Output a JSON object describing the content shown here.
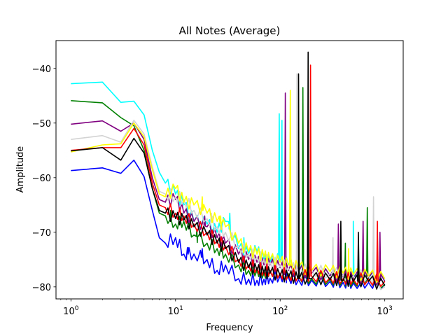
{
  "chart_data": {
    "type": "line",
    "title": "All Notes (Average)",
    "xlabel": "Frequency",
    "ylabel": "Amplitude",
    "xscale": "log",
    "xlim": [
      0.72,
      1500
    ],
    "ylim": [
      -82.2,
      -34.9
    ],
    "grid": false,
    "legend": "none",
    "x_ticks": [
      {
        "value": 1,
        "base": "10",
        "exp": "0"
      },
      {
        "value": 10,
        "base": "10",
        "exp": "1"
      },
      {
        "value": 100,
        "base": "10",
        "exp": "2"
      },
      {
        "value": 1000,
        "base": "10",
        "exp": "3"
      }
    ],
    "y_ticks": [
      {
        "value": -40,
        "label": "−40"
      },
      {
        "value": -50,
        "label": "−50"
      },
      {
        "value": -60,
        "label": "−60"
      },
      {
        "value": -70,
        "label": "−70"
      },
      {
        "value": -80,
        "label": "−80"
      }
    ],
    "series": [
      {
        "color": "#0000ff",
        "x": [
          1,
          2,
          3,
          4,
          5,
          6,
          7,
          8,
          10,
          12,
          15,
          20,
          25,
          30,
          40,
          50,
          60,
          70,
          80,
          100,
          120,
          150,
          200,
          300,
          400,
          500,
          700,
          1000
        ],
        "y": [
          -58.7,
          -58.2,
          -59.2,
          -56.8,
          -59.8,
          -66.0,
          -71.0,
          -72.0,
          -71.0,
          -74.0,
          -74.0,
          -75.0,
          -77.0,
          -76.0,
          -78.5,
          -78.6,
          -78.8,
          -78.6,
          -78.4,
          -78.0,
          -78.3,
          -78.7,
          -78.8,
          -79.0,
          -79.2,
          -79.3,
          -79.2,
          -79.5
        ],
        "peaks": [
          [
            13,
            -72.8
          ],
          [
            18,
            -73.0
          ],
          [
            115,
            -77.0
          ],
          [
            600,
            -78.0
          ]
        ]
      },
      {
        "color": "#00ffff",
        "x": [
          1,
          2,
          3,
          4,
          5,
          6,
          7,
          8,
          10,
          12,
          15,
          20,
          25,
          30,
          40,
          50,
          60,
          70,
          80,
          100,
          120,
          150,
          200,
          300,
          400,
          500,
          700,
          1000
        ],
        "y": [
          -42.8,
          -42.5,
          -46.2,
          -46.0,
          -48.5,
          -55.0,
          -59.0,
          -61.0,
          -63.0,
          -65.0,
          -68.0,
          -68.5,
          -70.0,
          -68.0,
          -73.0,
          -74.0,
          -73.5,
          -75.0,
          -75.5,
          -75.0,
          -76.0,
          -77.0,
          -77.5,
          -78.0,
          -78.2,
          -78.5,
          -78.4,
          -79.0
        ],
        "peaks": [
          [
            33,
            -66.5
          ],
          [
            45,
            -71.0
          ],
          [
            98,
            -48.3
          ],
          [
            104,
            -49.5
          ],
          [
            500,
            -68.0
          ]
        ]
      },
      {
        "color": "#008000",
        "x": [
          1,
          2,
          3,
          4,
          5,
          6,
          7,
          8,
          10,
          12,
          15,
          20,
          25,
          30,
          40,
          50,
          60,
          70,
          80,
          100,
          120,
          150,
          200,
          300,
          400,
          500,
          700,
          1000
        ],
        "y": [
          -45.9,
          -46.3,
          -49.0,
          -50.5,
          -55.0,
          -62.0,
          -66.5,
          -67.0,
          -68.5,
          -68.0,
          -70.5,
          -72.0,
          -73.0,
          -74.0,
          -76.0,
          -77.0,
          -77.0,
          -77.5,
          -77.0,
          -77.5,
          -77.6,
          -78.0,
          -78.5,
          -78.6,
          -78.8,
          -79.0,
          -78.5,
          -79.5
        ],
        "peaks": [
          [
            9,
            -66.0
          ],
          [
            16,
            -69.5
          ],
          [
            165,
            -43.5
          ],
          [
            420,
            -72.0
          ],
          [
            680,
            -65.5
          ]
        ]
      },
      {
        "color": "#800080",
        "x": [
          1,
          2,
          3,
          4,
          5,
          6,
          7,
          8,
          10,
          12,
          15,
          20,
          25,
          30,
          40,
          50,
          60,
          70,
          80,
          100,
          120,
          150,
          200,
          300,
          400,
          500,
          700,
          1000
        ],
        "y": [
          -50.2,
          -49.6,
          -51.5,
          -50.0,
          -53.0,
          -60.0,
          -64.0,
          -64.5,
          -64.0,
          -66.5,
          -68.0,
          -69.0,
          -71.0,
          -72.0,
          -74.0,
          -75.0,
          -75.5,
          -76.0,
          -76.0,
          -76.5,
          -77.0,
          -77.2,
          -77.5,
          -78.0,
          -78.2,
          -78.5,
          -78.3,
          -79.0
        ],
        "peaks": [
          [
            19,
            -67.0
          ],
          [
            112,
            -44.5
          ],
          [
            360,
            -68.5
          ],
          [
            620,
            -68.0
          ],
          [
            900,
            -70.0
          ]
        ]
      },
      {
        "color": "#d3d3d3",
        "x": [
          1,
          2,
          3,
          4,
          5,
          6,
          7,
          8,
          10,
          12,
          15,
          20,
          25,
          30,
          40,
          50,
          60,
          70,
          80,
          100,
          120,
          150,
          200,
          300,
          400,
          500,
          700,
          1000
        ],
        "y": [
          -53.0,
          -52.3,
          -53.5,
          -49.5,
          -52.0,
          -58.0,
          -62.5,
          -63.0,
          -63.5,
          -64.0,
          -66.0,
          -67.5,
          -69.0,
          -70.0,
          -72.5,
          -74.0,
          -74.5,
          -75.0,
          -75.5,
          -76.0,
          -76.5,
          -77.0,
          -77.0,
          -77.5,
          -77.8,
          -78.0,
          -78.0,
          -80.0
        ],
        "peaks": [
          [
            22,
            -66.5
          ],
          [
            145,
            -41.0
          ],
          [
            320,
            -71.0
          ],
          [
            780,
            -63.5
          ]
        ]
      },
      {
        "color": "#ffff00",
        "x": [
          1,
          2,
          3,
          4,
          5,
          6,
          7,
          8,
          10,
          12,
          15,
          20,
          25,
          30,
          40,
          50,
          60,
          70,
          80,
          100,
          120,
          150,
          200,
          300,
          400,
          500,
          700,
          1000
        ],
        "y": [
          -55.3,
          -54.0,
          -53.8,
          -50.0,
          -52.5,
          -58.5,
          -63.0,
          -63.5,
          -62.0,
          -64.5,
          -65.0,
          -66.5,
          -68.0,
          -69.0,
          -72.0,
          -73.5,
          -74.0,
          -74.5,
          -75.0,
          -75.5,
          -76.0,
          -76.5,
          -77.0,
          -77.2,
          -77.5,
          -77.8,
          -78.0,
          -78.5
        ],
        "peaks": [
          [
            18,
            -63.5
          ],
          [
            27,
            -67.0
          ],
          [
            125,
            -44.0
          ],
          [
            450,
            -73.0
          ]
        ]
      },
      {
        "color": "#ff0000",
        "x": [
          1,
          2,
          3,
          4,
          5,
          6,
          7,
          8,
          10,
          12,
          15,
          20,
          25,
          30,
          40,
          50,
          60,
          70,
          80,
          100,
          120,
          150,
          200,
          300,
          400,
          500,
          700,
          1000
        ],
        "y": [
          -55.0,
          -54.5,
          -54.5,
          -51.0,
          -54.0,
          -61.0,
          -65.0,
          -65.5,
          -66.5,
          -67.0,
          -68.5,
          -70.0,
          -71.5,
          -72.5,
          -75.0,
          -76.0,
          -76.5,
          -77.0,
          -77.0,
          -77.5,
          -77.8,
          -78.0,
          -78.0,
          -78.3,
          -78.5,
          -78.6,
          -78.6,
          -79.0
        ],
        "peaks": [
          [
            195,
            -39.4
          ],
          [
            850,
            -68.0
          ]
        ]
      },
      {
        "color": "#000000",
        "x": [
          1,
          2,
          3,
          4,
          5,
          6,
          7,
          8,
          10,
          12,
          15,
          20,
          25,
          30,
          40,
          50,
          60,
          70,
          80,
          100,
          120,
          150,
          200,
          300,
          400,
          500,
          700,
          1000
        ],
        "y": [
          -55.1,
          -54.5,
          -56.8,
          -52.8,
          -55.5,
          -62.0,
          -66.0,
          -66.5,
          -67.5,
          -67.8,
          -69.0,
          -70.5,
          -72.0,
          -73.0,
          -75.5,
          -76.5,
          -77.0,
          -77.5,
          -77.5,
          -78.0,
          -78.2,
          -78.5,
          -78.5,
          -78.7,
          -78.8,
          -79.0,
          -79.0,
          -79.8
        ],
        "peaks": [
          [
            185,
            -37.0
          ],
          [
            150,
            -41.0
          ],
          [
            380,
            -68.0
          ],
          [
            560,
            -70.0
          ]
        ]
      }
    ]
  }
}
